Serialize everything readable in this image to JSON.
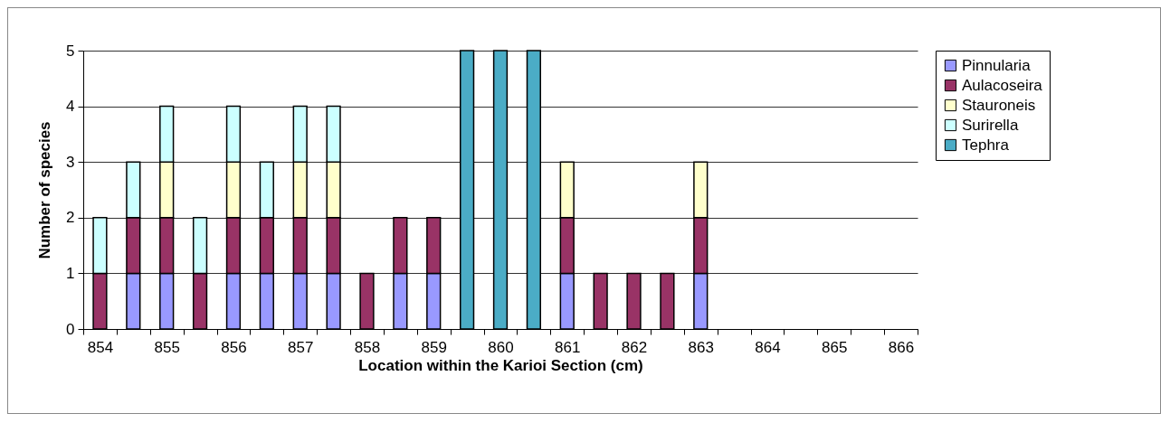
{
  "chart_data": {
    "type": "bar",
    "stacked": true,
    "xlabel": "Location within the Karioi Section (cm)",
    "ylabel": "Number of species",
    "categories": [
      "854",
      null,
      "855",
      null,
      "856",
      null,
      "857",
      null,
      "858",
      null,
      "859",
      null,
      "860",
      null,
      "861",
      null,
      "862",
      null,
      "863",
      null,
      "864",
      null,
      "865",
      null,
      "866"
    ],
    "series": [
      {
        "name": "Pinnularia",
        "color": "#9999ff",
        "values": [
          null,
          1,
          1,
          null,
          1,
          1,
          1,
          1,
          null,
          1,
          1,
          null,
          null,
          null,
          1,
          null,
          null,
          null,
          1,
          null,
          null,
          null,
          null,
          null,
          null
        ]
      },
      {
        "name": "Aulacoseira",
        "color": "#993366",
        "values": [
          1,
          1,
          1,
          1,
          1,
          1,
          1,
          1,
          1,
          1,
          1,
          null,
          null,
          null,
          1,
          1,
          1,
          1,
          1,
          null,
          null,
          null,
          null,
          null,
          null
        ]
      },
      {
        "name": "Stauroneis",
        "color": "#ffffcc",
        "values": [
          null,
          null,
          1,
          null,
          1,
          null,
          1,
          1,
          null,
          null,
          null,
          null,
          null,
          null,
          1,
          null,
          null,
          null,
          1,
          null,
          null,
          null,
          null,
          null,
          null
        ]
      },
      {
        "name": "Surirella",
        "color": "#ccffff",
        "values": [
          1,
          1,
          1,
          1,
          1,
          1,
          1,
          1,
          null,
          null,
          null,
          null,
          null,
          null,
          null,
          null,
          null,
          null,
          null,
          null,
          null,
          null,
          null,
          null,
          null
        ]
      },
      {
        "name": "Tephra",
        "color": "#4bacc6",
        "values": [
          null,
          null,
          null,
          null,
          null,
          null,
          null,
          null,
          null,
          null,
          null,
          5,
          5,
          5,
          null,
          null,
          null,
          null,
          null,
          null,
          null,
          null,
          null,
          null,
          null
        ]
      }
    ],
    "ylim": [
      0,
      5
    ],
    "yticks": [
      0,
      1,
      2,
      3,
      4,
      5
    ],
    "grid": "y",
    "legend": "right"
  }
}
